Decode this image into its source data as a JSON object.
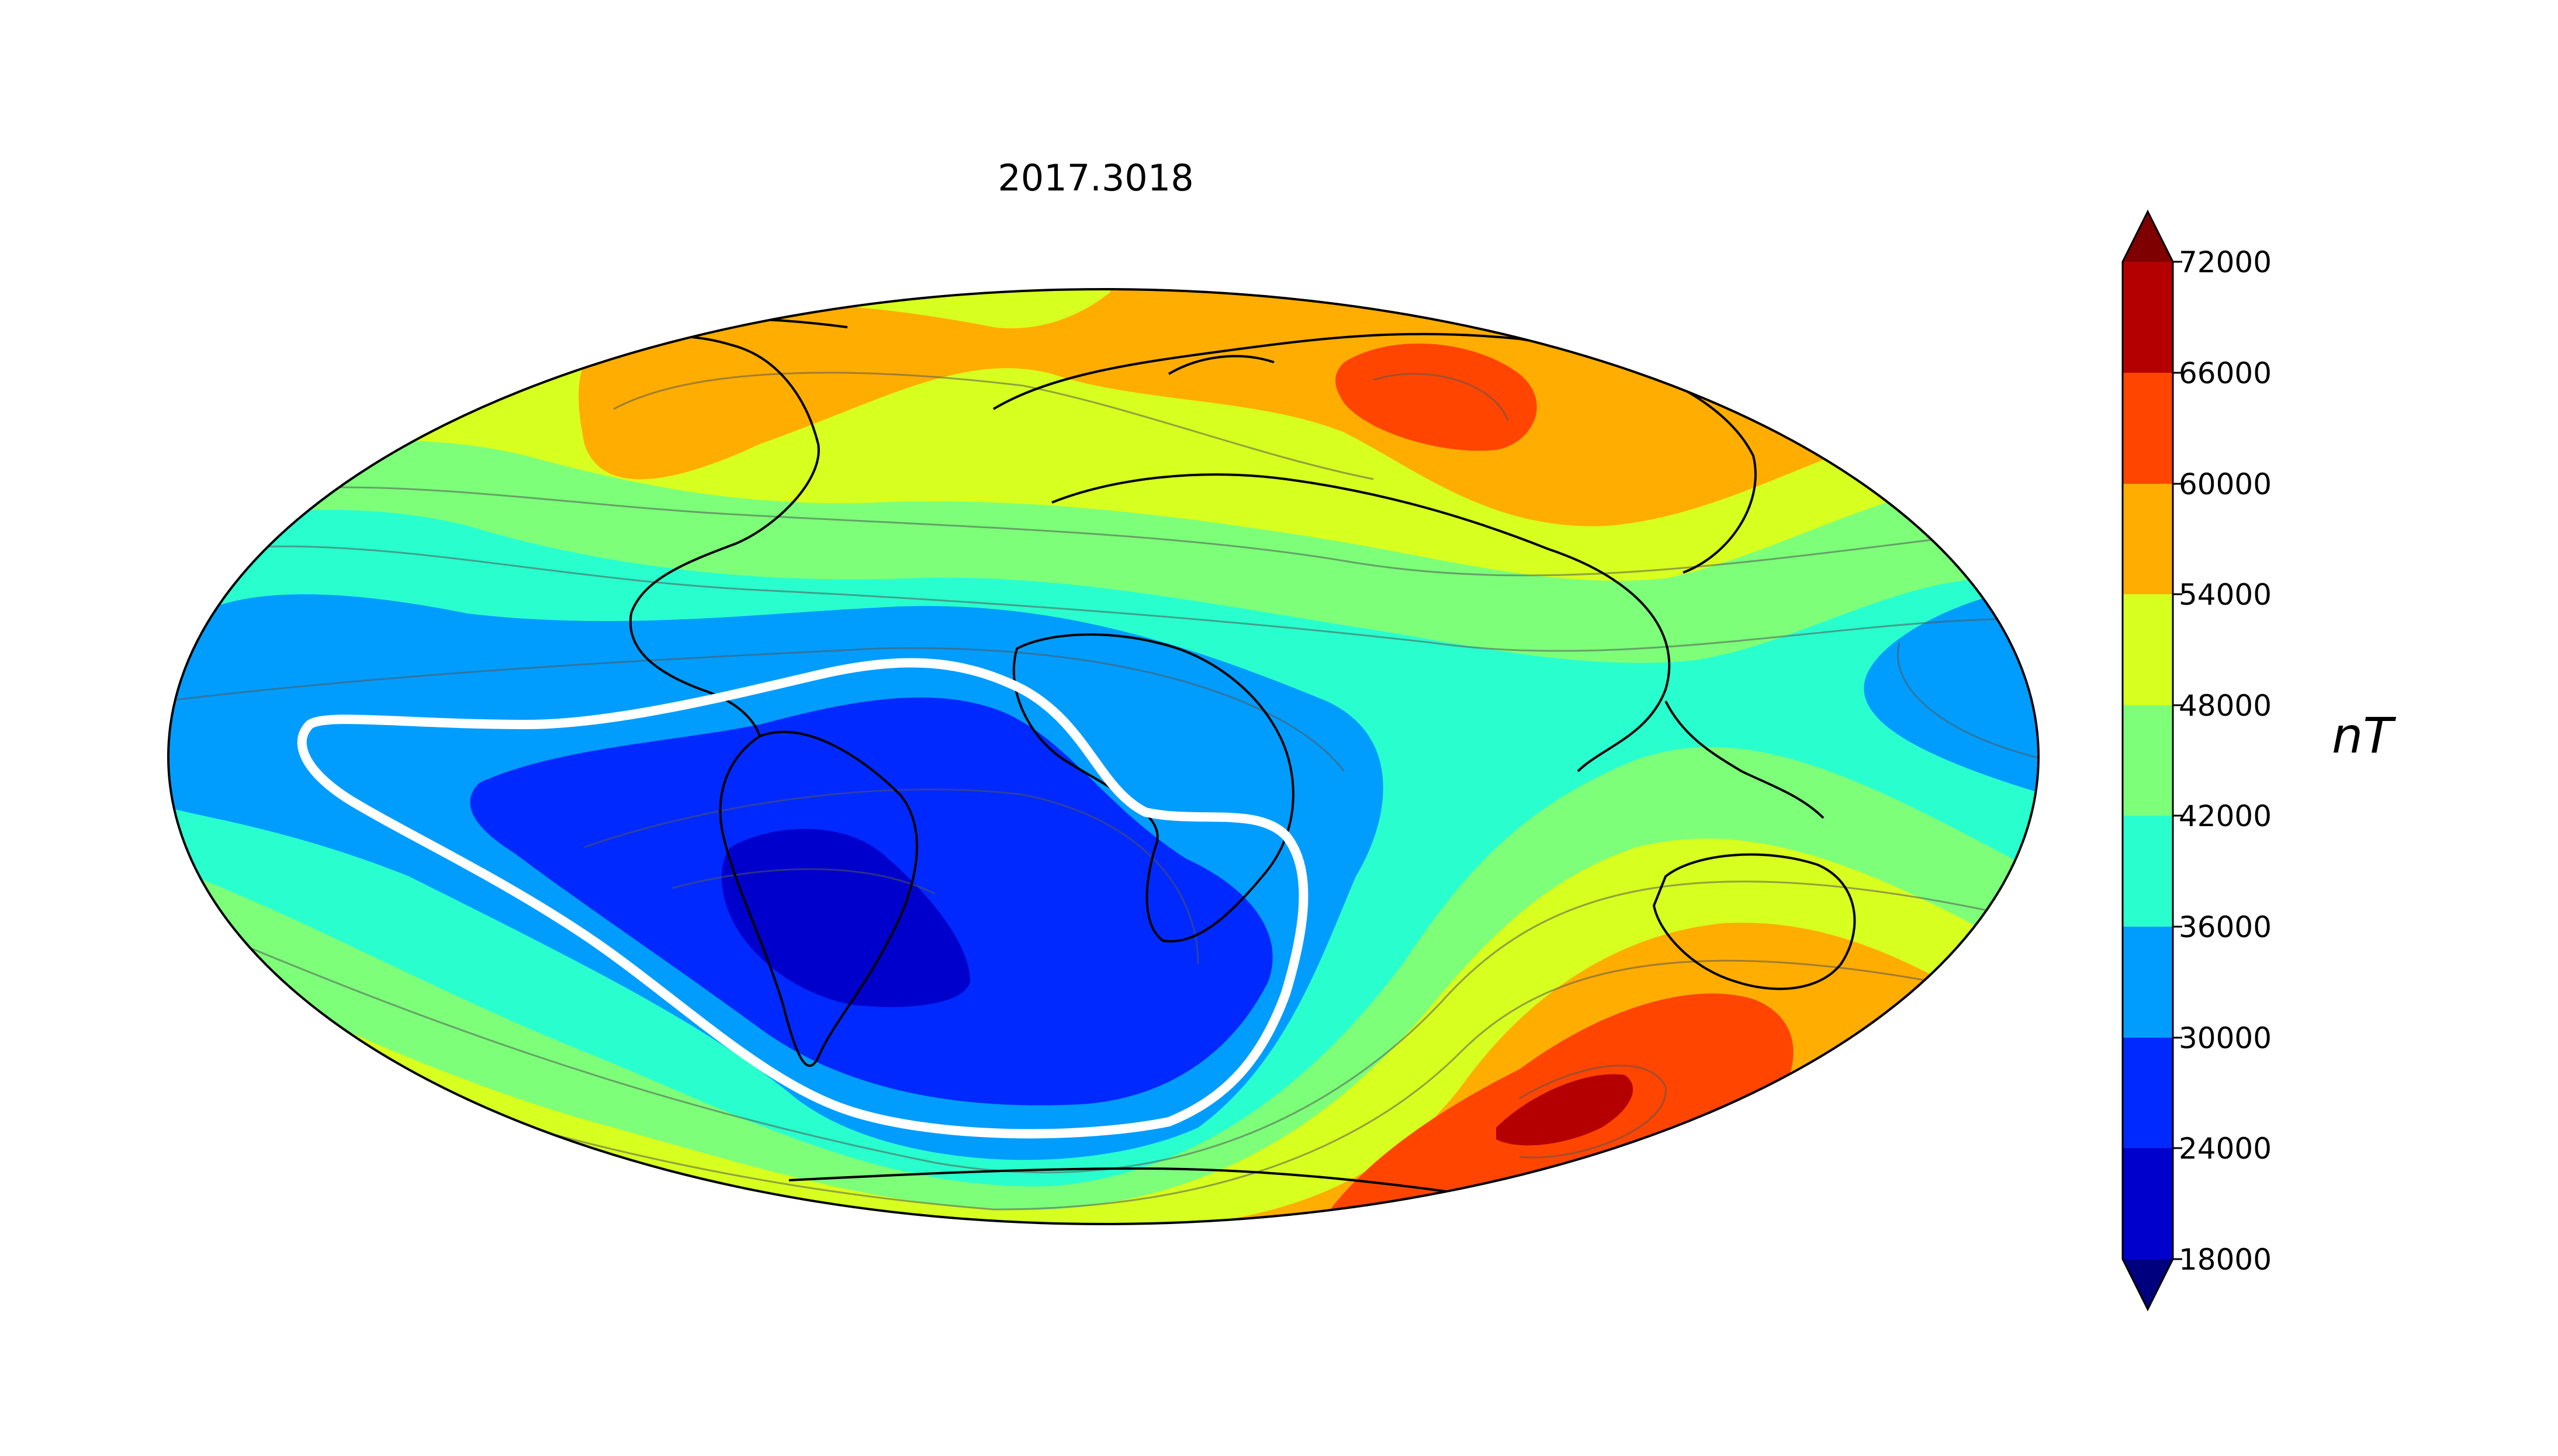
{
  "title": "2017.3018",
  "projection": "hammer / mollweide world map",
  "field": "geomagnetic total intensity",
  "colorbar": {
    "unit": "nT",
    "ticks": [
      "72000",
      "66000",
      "60000",
      "54000",
      "48000",
      "42000",
      "36000",
      "30000",
      "24000",
      "18000"
    ],
    "levels": [
      {
        "min": 66000,
        "max": 72000,
        "color": "#b40000"
      },
      {
        "min": 60000,
        "max": 66000,
        "color": "#ff4500"
      },
      {
        "min": 54000,
        "max": 60000,
        "color": "#ffad00"
      },
      {
        "min": 48000,
        "max": 54000,
        "color": "#d7ff1f"
      },
      {
        "min": 42000,
        "max": 48000,
        "color": "#7dff7a"
      },
      {
        "min": 36000,
        "max": 42000,
        "color": "#29ffce"
      },
      {
        "min": 30000,
        "max": 36000,
        "color": "#009dff"
      },
      {
        "min": 24000,
        "max": 30000,
        "color": "#0029ff"
      },
      {
        "min": 18000,
        "max": 24000,
        "color": "#0000cd"
      }
    ],
    "extend_max_color": "#7f0000",
    "extend_min_color": "#00007f"
  },
  "highlight_contour": {
    "value": "32000",
    "color": "#ffffff"
  },
  "features": [
    "South Atlantic Anomaly minimum over South America",
    "intensity maxima over Siberia and south of Australia"
  ]
}
